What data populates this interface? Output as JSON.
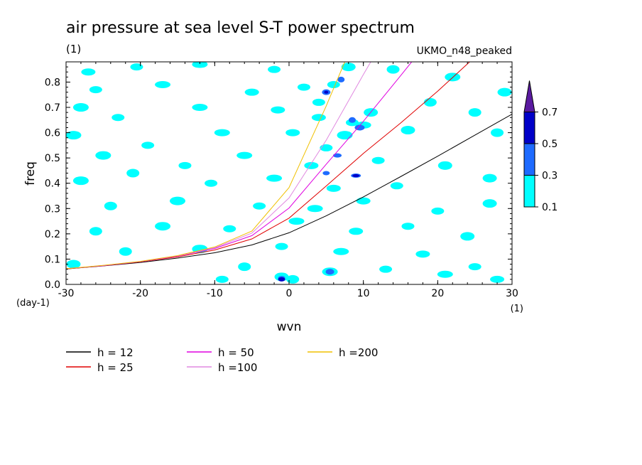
{
  "chart_data": {
    "type": "heatmap",
    "title": "air pressure at sea level S-T power spectrum",
    "subtitle_left": "(1)",
    "subtitle_right": "UKMO_n48_peaked",
    "xlabel": "wvn",
    "ylabel": "freq",
    "x_unit": "(1)",
    "y_unit": "(day-1)",
    "xlim": [
      -30,
      30
    ],
    "ylim": [
      0,
      0.88
    ],
    "x_ticks": [
      -30,
      -20,
      -10,
      0,
      10,
      20,
      30
    ],
    "x_tick_labels": [
      "-30",
      "-20",
      "-10",
      "0",
      "10",
      "20",
      "30"
    ],
    "y_ticks": [
      0,
      0.1,
      0.2,
      0.3,
      0.4,
      0.5,
      0.6,
      0.7,
      0.8
    ],
    "y_tick_labels": [
      "0.0",
      "0.1",
      "0.2",
      "0.3",
      "0.4",
      "0.5",
      "0.6",
      "0.7",
      "0.8"
    ],
    "colorbar": {
      "levels": [
        0.1,
        0.3,
        0.5,
        0.7
      ],
      "labels": [
        "0.1",
        "0.3",
        "0.5",
        "0.7"
      ],
      "colors": [
        "#00ffff",
        "#1e6bff",
        "#0000c8",
        "#5a1aa0"
      ]
    },
    "contour_blobs": [
      {
        "x": -20.5,
        "y": 0.86,
        "level": 1
      },
      {
        "x": -12,
        "y": 0.87,
        "level": 1
      },
      {
        "x": -27,
        "y": 0.84,
        "level": 1
      },
      {
        "x": -2,
        "y": 0.85,
        "level": 1
      },
      {
        "x": 8,
        "y": 0.86,
        "level": 1
      },
      {
        "x": 14,
        "y": 0.85,
        "level": 1
      },
      {
        "x": 22,
        "y": 0.82,
        "level": 1
      },
      {
        "x": -26,
        "y": 0.77,
        "level": 1
      },
      {
        "x": -17,
        "y": 0.79,
        "level": 1
      },
      {
        "x": -5,
        "y": 0.76,
        "level": 1
      },
      {
        "x": 2,
        "y": 0.78,
        "level": 1
      },
      {
        "x": 29,
        "y": 0.76,
        "level": 1
      },
      {
        "x": 19,
        "y": 0.72,
        "level": 1
      },
      {
        "x": -28,
        "y": 0.7,
        "level": 1
      },
      {
        "x": -23,
        "y": 0.66,
        "level": 1
      },
      {
        "x": -12,
        "y": 0.7,
        "level": 1
      },
      {
        "x": -1.5,
        "y": 0.69,
        "level": 1
      },
      {
        "x": 4,
        "y": 0.72,
        "level": 1
      },
      {
        "x": 11,
        "y": 0.68,
        "level": 1
      },
      {
        "x": 25,
        "y": 0.68,
        "level": 1
      },
      {
        "x": -29,
        "y": 0.59,
        "level": 1
      },
      {
        "x": -19,
        "y": 0.55,
        "level": 1
      },
      {
        "x": -9,
        "y": 0.6,
        "level": 1
      },
      {
        "x": 0.5,
        "y": 0.6,
        "level": 1
      },
      {
        "x": 8.5,
        "y": 0.64,
        "level": 1
      },
      {
        "x": 16,
        "y": 0.61,
        "level": 1
      },
      {
        "x": 28,
        "y": 0.6,
        "level": 1
      },
      {
        "x": -25,
        "y": 0.51,
        "level": 1
      },
      {
        "x": -14,
        "y": 0.47,
        "level": 1
      },
      {
        "x": -6,
        "y": 0.51,
        "level": 1
      },
      {
        "x": 3,
        "y": 0.47,
        "level": 1
      },
      {
        "x": 12,
        "y": 0.49,
        "level": 1
      },
      {
        "x": 21,
        "y": 0.47,
        "level": 1
      },
      {
        "x": -21,
        "y": 0.44,
        "level": 1
      },
      {
        "x": -28,
        "y": 0.41,
        "level": 1
      },
      {
        "x": -10.5,
        "y": 0.4,
        "level": 1
      },
      {
        "x": -2,
        "y": 0.42,
        "level": 1
      },
      {
        "x": 6,
        "y": 0.38,
        "level": 1
      },
      {
        "x": 14.5,
        "y": 0.39,
        "level": 1
      },
      {
        "x": 27,
        "y": 0.42,
        "level": 1
      },
      {
        "x": -24,
        "y": 0.31,
        "level": 1
      },
      {
        "x": -15,
        "y": 0.33,
        "level": 1
      },
      {
        "x": -4,
        "y": 0.31,
        "level": 1
      },
      {
        "x": 3.5,
        "y": 0.3,
        "level": 1
      },
      {
        "x": 10,
        "y": 0.33,
        "level": 1
      },
      {
        "x": 20,
        "y": 0.29,
        "level": 1
      },
      {
        "x": 27,
        "y": 0.32,
        "level": 1
      },
      {
        "x": -26,
        "y": 0.21,
        "level": 1
      },
      {
        "x": -17,
        "y": 0.23,
        "level": 1
      },
      {
        "x": -8,
        "y": 0.22,
        "level": 1
      },
      {
        "x": 1,
        "y": 0.25,
        "level": 1
      },
      {
        "x": 9,
        "y": 0.21,
        "level": 1
      },
      {
        "x": 16,
        "y": 0.23,
        "level": 1
      },
      {
        "x": 24,
        "y": 0.19,
        "level": 1
      },
      {
        "x": -22,
        "y": 0.13,
        "level": 1
      },
      {
        "x": -12,
        "y": 0.14,
        "level": 1
      },
      {
        "x": -1,
        "y": 0.15,
        "level": 1
      },
      {
        "x": 7,
        "y": 0.13,
        "level": 1
      },
      {
        "x": 18,
        "y": 0.12,
        "level": 1
      },
      {
        "x": 25,
        "y": 0.07,
        "level": 1
      },
      {
        "x": -29,
        "y": 0.08,
        "level": 1
      },
      {
        "x": -6,
        "y": 0.07,
        "level": 1
      },
      {
        "x": 5.5,
        "y": 0.05,
        "level": 1
      },
      {
        "x": 13,
        "y": 0.06,
        "level": 1
      },
      {
        "x": 21,
        "y": 0.04,
        "level": 1
      },
      {
        "x": 28,
        "y": 0.02,
        "level": 1
      },
      {
        "x": -9,
        "y": 0.02,
        "level": 1
      },
      {
        "x": -1,
        "y": 0.03,
        "level": 1
      },
      {
        "x": 0.5,
        "y": 0.02,
        "level": 1
      },
      {
        "x": 7.5,
        "y": 0.59,
        "level": 1
      },
      {
        "x": 5,
        "y": 0.54,
        "level": 1
      },
      {
        "x": 10,
        "y": 0.63,
        "level": 1
      },
      {
        "x": 4,
        "y": 0.66,
        "level": 1
      },
      {
        "x": 6,
        "y": 0.79,
        "level": 1
      },
      {
        "x": 5,
        "y": 0.76,
        "level": 2
      },
      {
        "x": 8.5,
        "y": 0.65,
        "level": 2
      },
      {
        "x": 9.5,
        "y": 0.62,
        "level": 2
      },
      {
        "x": 5,
        "y": 0.44,
        "level": 2
      },
      {
        "x": 9,
        "y": 0.43,
        "level": 2
      },
      {
        "x": 6.5,
        "y": 0.51,
        "level": 2
      },
      {
        "x": -1,
        "y": 0.025,
        "level": 2
      },
      {
        "x": 5.5,
        "y": 0.05,
        "level": 2
      },
      {
        "x": 7,
        "y": 0.81,
        "level": 2
      },
      {
        "x": -1,
        "y": 0.02,
        "level": 3
      },
      {
        "x": 5,
        "y": 0.76,
        "level": 3
      },
      {
        "x": 9,
        "y": 0.43,
        "level": 3
      }
    ],
    "series": [
      {
        "name": "h = 12",
        "color": "#000000",
        "x": [
          -30,
          -25,
          -20,
          -15,
          -10,
          -5,
          0,
          5,
          10,
          15,
          20,
          25,
          30
        ],
        "y": [
          0.061,
          0.073,
          0.087,
          0.104,
          0.125,
          0.156,
          0.204,
          0.271,
          0.346,
          0.426,
          0.507,
          0.59,
          0.673
        ]
      },
      {
        "name": "h = 25",
        "color": "#e00000",
        "x": [
          -30,
          -25,
          -20,
          -15,
          -10,
          -5,
          0,
          5,
          10,
          15,
          20,
          24.3
        ],
        "y": [
          0.061,
          0.074,
          0.089,
          0.109,
          0.136,
          0.18,
          0.262,
          0.389,
          0.518,
          0.638,
          0.764,
          0.88
        ]
      },
      {
        "name": "h = 50",
        "color": "#e000e0",
        "x": [
          -30,
          -25,
          -20,
          -15,
          -10,
          -5,
          0,
          5,
          10,
          15,
          16.5
        ],
        "y": [
          0.062,
          0.074,
          0.09,
          0.112,
          0.142,
          0.193,
          0.302,
          0.475,
          0.645,
          0.825,
          0.88
        ]
      },
      {
        "name": "h =100",
        "color": "#e089e0",
        "x": [
          -30,
          -25,
          -20,
          -15,
          -10,
          -5,
          0,
          5,
          10,
          11
        ],
        "y": [
          0.062,
          0.075,
          0.091,
          0.113,
          0.145,
          0.203,
          0.342,
          0.57,
          0.83,
          0.88
        ]
      },
      {
        "name": "h =200",
        "color": "#f0c000",
        "x": [
          -30,
          -25,
          -20,
          -15,
          -10,
          -5,
          0,
          5,
          7.5
        ],
        "y": [
          0.062,
          0.075,
          0.091,
          0.114,
          0.148,
          0.211,
          0.383,
          0.705,
          0.88
        ]
      }
    ]
  }
}
